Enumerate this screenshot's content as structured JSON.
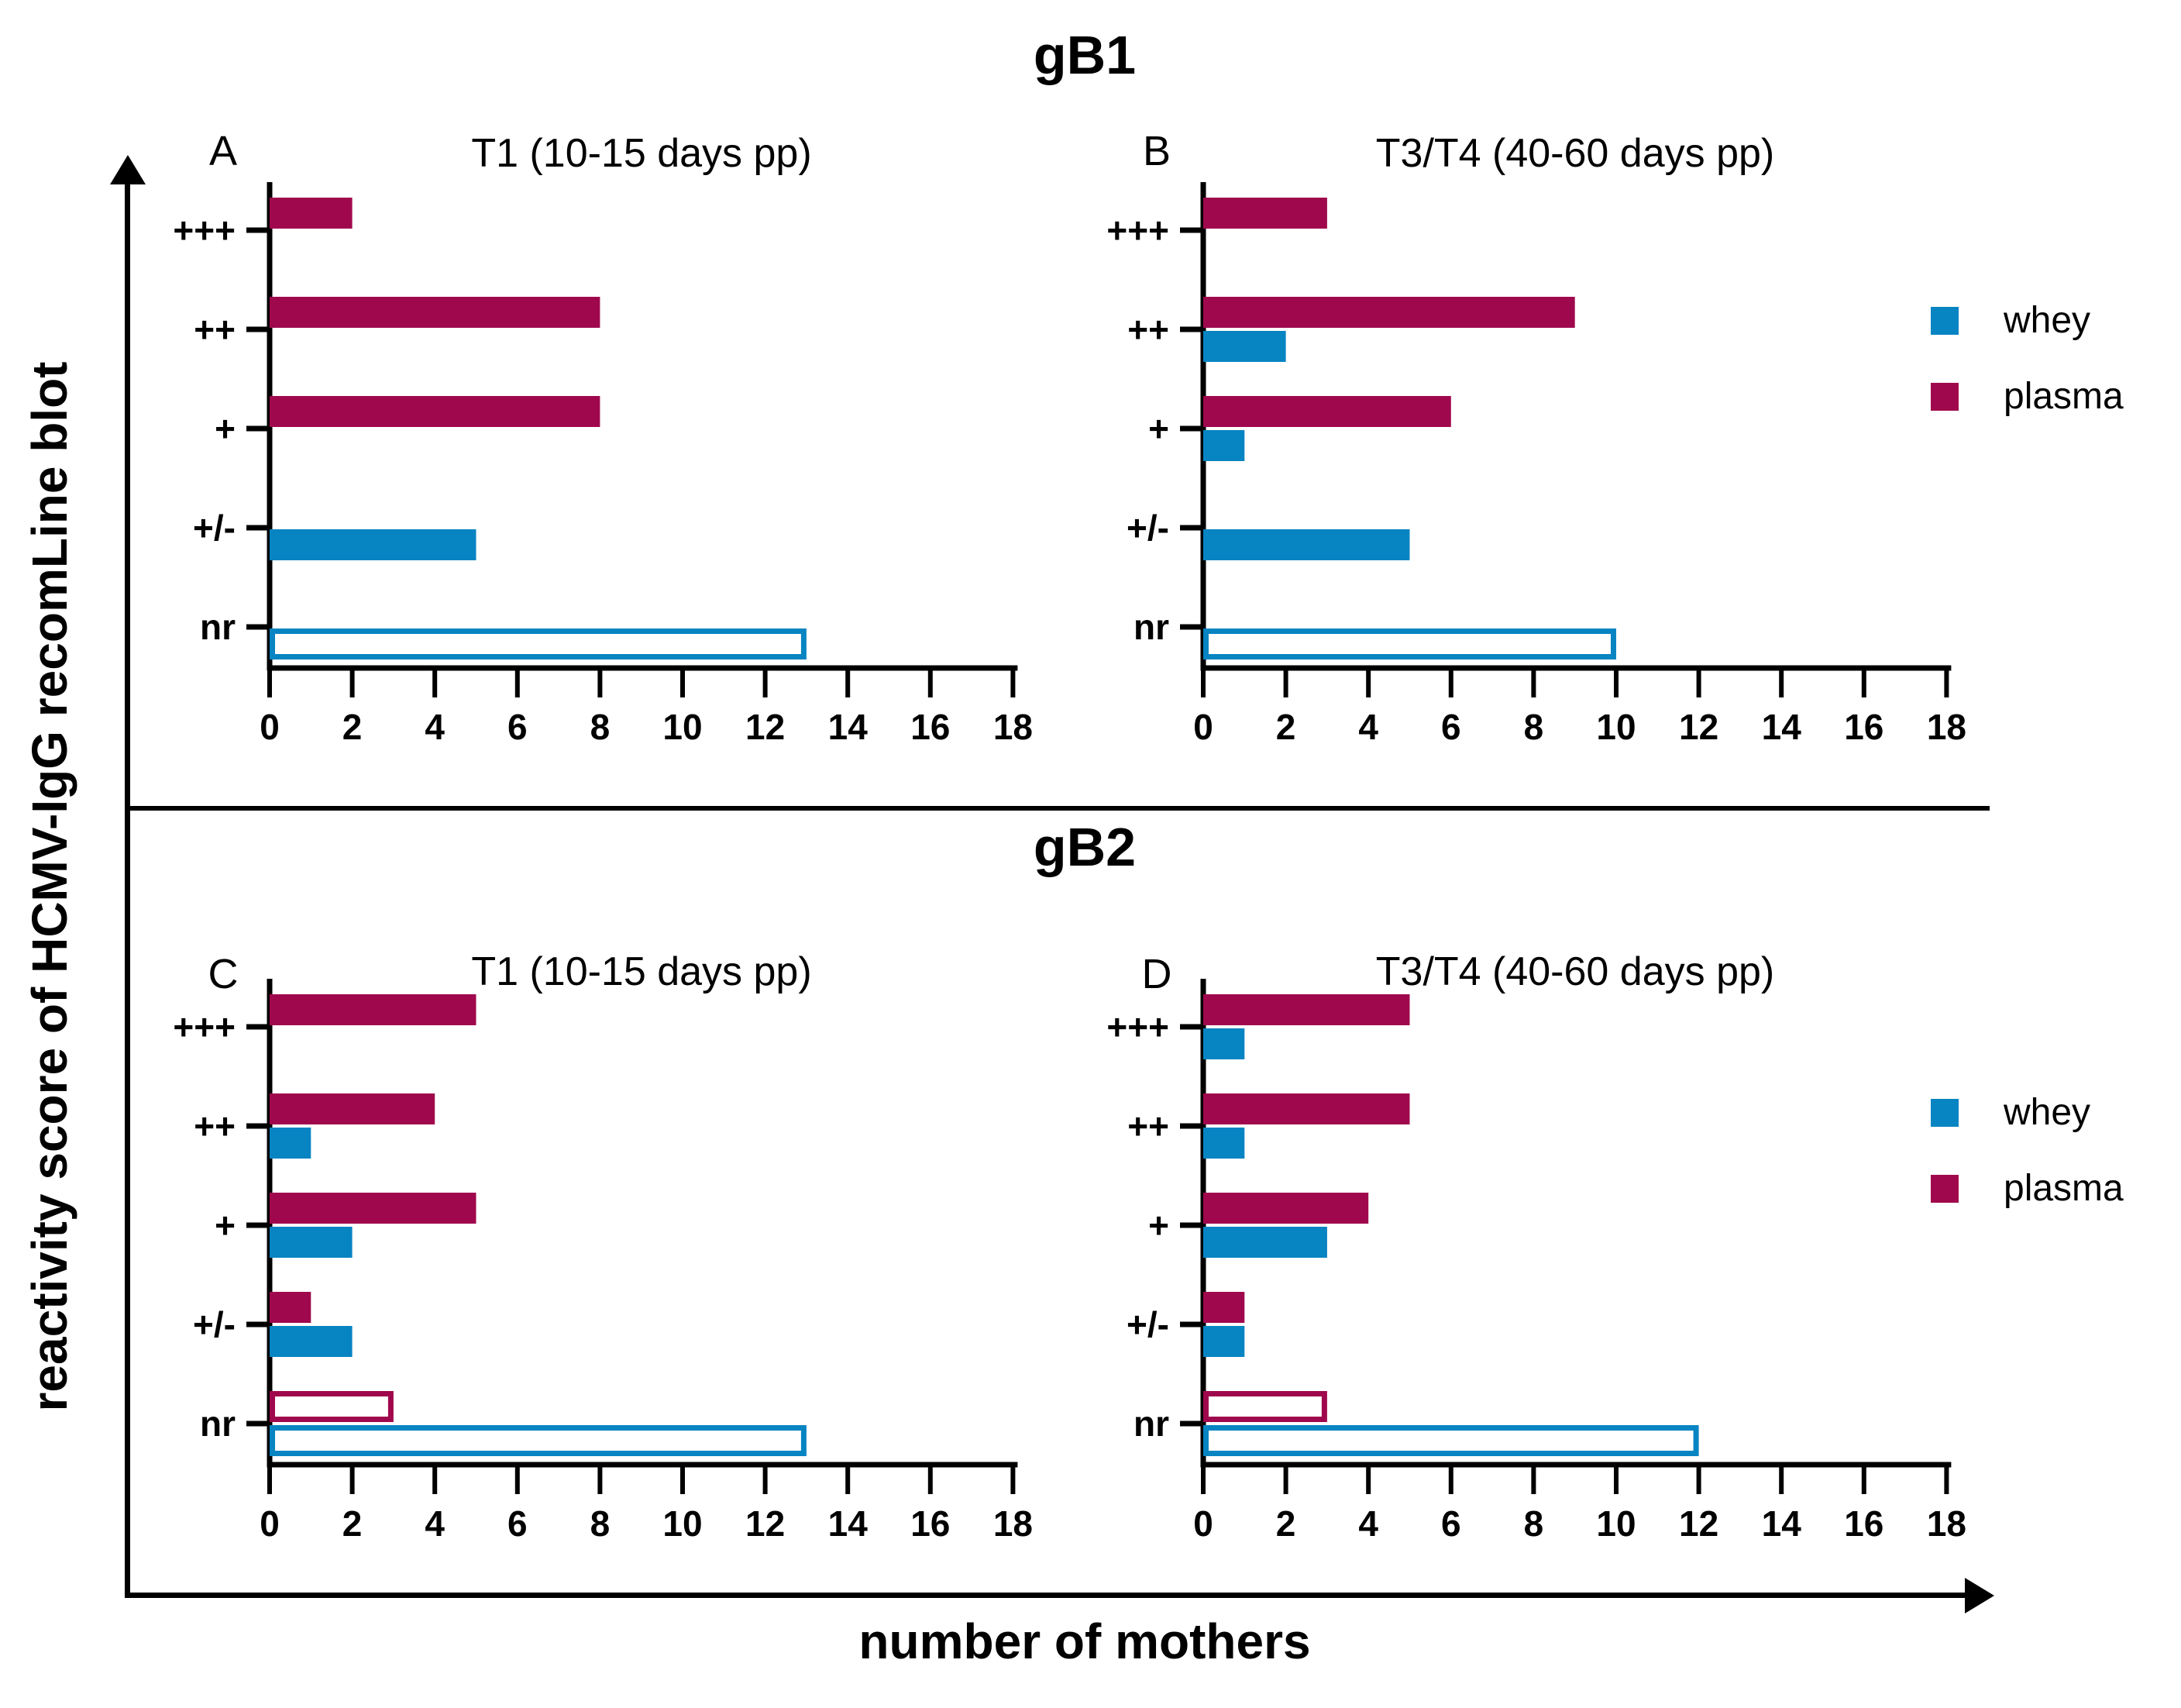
{
  "figure": {
    "section1_title": "gB1",
    "section2_title": "gB2",
    "y_axis_label": "reactivity score of HCMV-IgG recomLine blot",
    "x_axis_label": "number of mothers"
  },
  "legend": {
    "whey_label": "whey",
    "plasma_label": "plasma"
  },
  "colors": {
    "whey": "#0784C2",
    "plasma": "#A0084D",
    "axis": "#000000",
    "background": "#FFFFFF"
  },
  "chart_data": [
    {
      "panel_letter": "A",
      "section": "gB1",
      "title": "T1 (10-15 days pp)",
      "type": "bar",
      "orientation": "horizontal",
      "categories": [
        "+++",
        "++",
        "+",
        "+/-",
        "nr"
      ],
      "series": [
        {
          "name": "plasma",
          "color": "#A0084D",
          "values": [
            2,
            8,
            8,
            0,
            0
          ]
        },
        {
          "name": "whey",
          "color": "#0784C2",
          "values": [
            0,
            0,
            0,
            5,
            13
          ]
        }
      ],
      "hollow_category": "nr",
      "xlim": [
        0,
        18
      ],
      "xtick_step": 2,
      "grid": false,
      "legend_position": "right"
    },
    {
      "panel_letter": "B",
      "section": "gB1",
      "title": "T3/T4 (40-60 days pp)",
      "type": "bar",
      "orientation": "horizontal",
      "categories": [
        "+++",
        "++",
        "+",
        "+/-",
        "nr"
      ],
      "series": [
        {
          "name": "plasma",
          "color": "#A0084D",
          "values": [
            3,
            9,
            6,
            0,
            0
          ]
        },
        {
          "name": "whey",
          "color": "#0784C2",
          "values": [
            0,
            2,
            1,
            5,
            10
          ]
        }
      ],
      "hollow_category": "nr",
      "xlim": [
        0,
        18
      ],
      "xtick_step": 2,
      "grid": false,
      "legend_position": "right"
    },
    {
      "panel_letter": "C",
      "section": "gB2",
      "title": "T1 (10-15 days pp)",
      "type": "bar",
      "orientation": "horizontal",
      "categories": [
        "+++",
        "++",
        "+",
        "+/-",
        "nr"
      ],
      "series": [
        {
          "name": "plasma",
          "color": "#A0084D",
          "values": [
            5,
            4,
            5,
            1,
            3
          ]
        },
        {
          "name": "whey",
          "color": "#0784C2",
          "values": [
            0,
            1,
            2,
            2,
            13
          ]
        }
      ],
      "hollow_category": "nr",
      "xlim": [
        0,
        18
      ],
      "xtick_step": 2,
      "grid": false,
      "legend_position": "right"
    },
    {
      "panel_letter": "D",
      "section": "gB2",
      "title": "T3/T4 (40-60 days pp)",
      "type": "bar",
      "orientation": "horizontal",
      "categories": [
        "+++",
        "++",
        "+",
        "+/-",
        "nr"
      ],
      "series": [
        {
          "name": "plasma",
          "color": "#A0084D",
          "values": [
            5,
            5,
            4,
            1,
            3
          ]
        },
        {
          "name": "whey",
          "color": "#0784C2",
          "values": [
            1,
            1,
            3,
            1,
            12
          ]
        }
      ],
      "hollow_category": "nr",
      "xlim": [
        0,
        18
      ],
      "xtick_step": 2,
      "grid": false,
      "legend_position": "right"
    }
  ]
}
